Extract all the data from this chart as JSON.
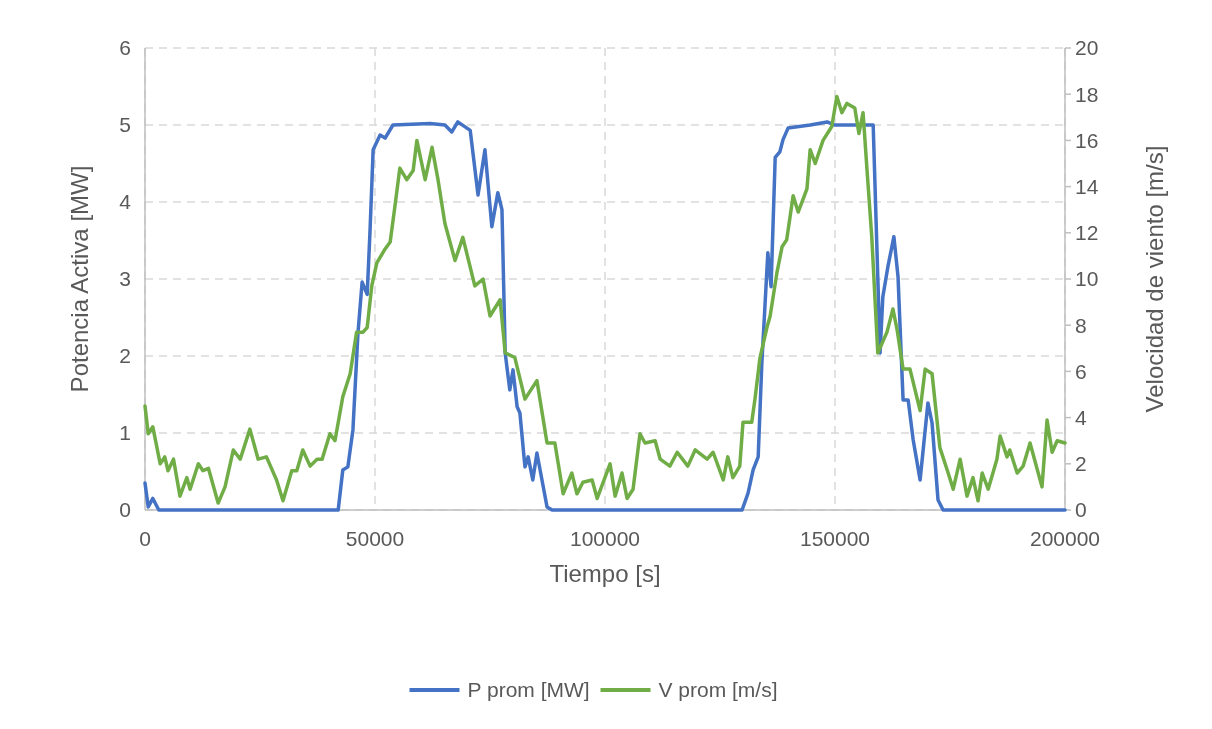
{
  "chart_data": {
    "type": "line",
    "xlabel": "Tiempo [s]",
    "ylabel": "Potencia Activa [MW]",
    "y2label": "Velocidad de viento [m/s]",
    "xlim": [
      0,
      200000
    ],
    "xticks": [
      0,
      50000,
      100000,
      150000,
      200000
    ],
    "ylim": [
      0,
      6
    ],
    "yticks": [
      0,
      1,
      2,
      3,
      4,
      5,
      6
    ],
    "y2lim": [
      0,
      20
    ],
    "y2ticks": [
      0,
      2,
      4,
      6,
      8,
      10,
      12,
      14,
      16,
      18,
      20
    ],
    "grid": true,
    "legend": "bottom",
    "line_style": "solid",
    "marker": "none",
    "series": [
      {
        "name": "P prom [MW]",
        "color": "#4472c4",
        "x": [
          0,
          700,
          1700,
          3000,
          42000,
          43000,
          44100,
          45200,
          46300,
          47200,
          48300,
          48900,
          49600,
          51100,
          52200,
          53900,
          62000,
          65200,
          66700,
          68000,
          70700,
          72400,
          73900,
          75400,
          76700,
          77600,
          78300,
          79300,
          80000,
          80900,
          81500,
          82600,
          83300,
          84300,
          85200,
          86300,
          87400,
          88500,
          129800,
          131100,
          132200,
          133300,
          134100,
          135000,
          135400,
          136100,
          137000,
          138000,
          138700,
          139800,
          144600,
          148300,
          149800,
          158300,
          159800,
          160400,
          161500,
          162800,
          163700,
          164800,
          165900,
          167000,
          168500,
          170200,
          171100,
          172400,
          173500,
          200000
        ],
        "values": [
          0.35,
          0.04,
          0.15,
          0,
          0,
          0.52,
          0.56,
          1.04,
          2.3,
          2.96,
          2.8,
          3.6,
          4.68,
          4.87,
          4.83,
          5.0,
          5.02,
          5.0,
          4.91,
          5.04,
          4.93,
          4.09,
          4.68,
          3.68,
          4.12,
          3.9,
          2.04,
          1.56,
          1.82,
          1.34,
          1.26,
          0.56,
          0.69,
          0.39,
          0.74,
          0.39,
          0.04,
          0,
          0,
          0.22,
          0.52,
          0.69,
          1.91,
          2.9,
          3.34,
          2.9,
          4.58,
          4.65,
          4.81,
          4.96,
          5.0,
          5.04,
          5.0,
          5.0,
          2.04,
          2.77,
          3.16,
          3.55,
          3.03,
          1.43,
          1.43,
          0.91,
          0.39,
          1.39,
          1.13,
          0.13,
          0,
          0
        ]
      },
      {
        "name": "V prom [m/s]",
        "color": "#70ad47",
        "axis": "y2",
        "x": [
          0,
          700,
          1700,
          3300,
          4300,
          5000,
          6200,
          7600,
          9100,
          9800,
          11600,
          12600,
          13800,
          15900,
          17400,
          19200,
          20700,
          22800,
          24600,
          26400,
          28600,
          30000,
          31900,
          33000,
          34300,
          35900,
          37400,
          38500,
          40200,
          41300,
          43000,
          44600,
          46000,
          47400,
          48300,
          49300,
          50400,
          52200,
          53300,
          54300,
          55400,
          56900,
          58300,
          59100,
          60900,
          62400,
          63700,
          65200,
          67400,
          69100,
          71700,
          73500,
          75000,
          77200,
          78300,
          80400,
          82600,
          85200,
          87400,
          89100,
          90900,
          92800,
          93900,
          95200,
          97200,
          98300,
          101100,
          102200,
          103700,
          104800,
          106100,
          107600,
          108700,
          110900,
          112000,
          114100,
          115700,
          118000,
          119600,
          122200,
          123500,
          125700,
          126700,
          127800,
          129300,
          130000,
          131900,
          132600,
          133700,
          135200,
          135900,
          137400,
          138500,
          139500,
          140900,
          142000,
          143900,
          144600,
          145700,
          147400,
          149300,
          150400,
          151500,
          152600,
          154300,
          155200,
          156100,
          157000,
          158000,
          159300,
          161300,
          162600,
          163500,
          164800,
          166300,
          168500,
          169600,
          171100,
          172800,
          174600,
          175700,
          177200,
          178700,
          180000,
          181100,
          182000,
          183300,
          185200,
          185900,
          187400,
          188000,
          189600,
          190900,
          192400,
          195000,
          196100,
          197200,
          198300,
          200000
        ],
        "values": [
          4.5,
          3.3,
          3.6,
          2.0,
          2.3,
          1.7,
          2.2,
          0.6,
          1.4,
          0.9,
          2.0,
          1.7,
          1.8,
          0.3,
          1.0,
          2.6,
          2.2,
          3.5,
          2.2,
          2.3,
          1.3,
          0.4,
          1.7,
          1.7,
          2.6,
          1.9,
          2.2,
          2.2,
          3.3,
          3.0,
          4.9,
          5.9,
          7.7,
          7.7,
          7.9,
          9.7,
          10.7,
          11.3,
          11.6,
          13.1,
          14.8,
          14.3,
          14.7,
          16.0,
          14.3,
          15.7,
          14.3,
          12.4,
          10.8,
          11.8,
          9.7,
          10.0,
          8.4,
          9.1,
          6.8,
          6.6,
          4.8,
          5.6,
          2.9,
          2.9,
          0.7,
          1.6,
          0.7,
          1.2,
          1.3,
          0.5,
          2.0,
          0.6,
          1.6,
          0.5,
          0.9,
          3.3,
          2.9,
          3.0,
          2.2,
          1.9,
          2.5,
          1.9,
          2.6,
          2.2,
          2.5,
          1.3,
          2.3,
          1.4,
          1.9,
          3.8,
          3.8,
          4.8,
          6.6,
          7.9,
          8.4,
          10.3,
          11.4,
          11.7,
          13.6,
          12.9,
          13.9,
          15.6,
          15.0,
          16.0,
          16.6,
          17.9,
          17.2,
          17.6,
          17.4,
          16.3,
          17.2,
          14.6,
          11.8,
          6.8,
          7.7,
          8.7,
          7.8,
          6.1,
          6.1,
          4.3,
          6.1,
          5.9,
          2.7,
          1.6,
          0.9,
          2.2,
          0.6,
          1.4,
          0.4,
          1.6,
          0.9,
          2.2,
          3.2,
          2.3,
          2.6,
          1.6,
          1.9,
          2.9,
          1.0,
          3.9,
          2.5,
          3.0,
          2.9
        ]
      }
    ]
  }
}
